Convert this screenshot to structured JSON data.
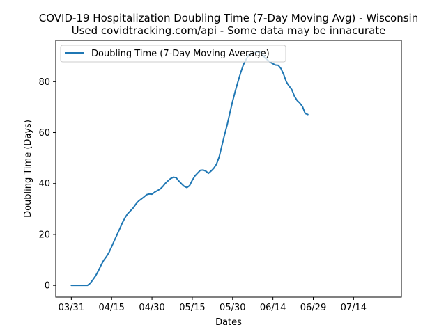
{
  "chart_data": {
    "type": "line",
    "title_lines": [
      "COVID-19 Hospitalization Doubling Time (7-Day Moving Avg) - Wisconsin",
      "Used covidtracking.com/api - Some data may be innacurate"
    ],
    "xlabel": "Dates",
    "ylabel": "Doubling Time (Days)",
    "x_ticks": [
      {
        "day": 0,
        "label": "03/31"
      },
      {
        "day": 15,
        "label": "04/15"
      },
      {
        "day": 30,
        "label": "04/30"
      },
      {
        "day": 45,
        "label": "05/15"
      },
      {
        "day": 60,
        "label": "05/30"
      },
      {
        "day": 75,
        "label": "06/14"
      },
      {
        "day": 90,
        "label": "06/29"
      },
      {
        "day": 105,
        "label": "07/14"
      }
    ],
    "y_ticks": [
      0,
      20,
      40,
      60,
      80
    ],
    "xlim": [
      -5.8,
      122.8
    ],
    "ylim": [
      -4.6,
      96.2
    ],
    "grid": false,
    "legend": "upper-left",
    "series": [
      {
        "name": "Doubling Time (7-Day Moving Average)",
        "color": "#1f77b4",
        "x_start_date": "03/31",
        "values": [
          0,
          0,
          0,
          0,
          0,
          0,
          0,
          0.8,
          2.2,
          3.7,
          5.6,
          7.8,
          9.8,
          11.2,
          12.9,
          15.2,
          17.6,
          19.9,
          22.2,
          24.6,
          26.6,
          28.2,
          29.3,
          30.4,
          31.9,
          33.1,
          33.9,
          34.7,
          35.6,
          35.9,
          35.8,
          36.6,
          37.2,
          37.8,
          38.8,
          40.1,
          41.1,
          42.0,
          42.5,
          42.3,
          41.0,
          39.9,
          38.9,
          38.4,
          39.2,
          41.3,
          43.0,
          44.1,
          45.2,
          45.3,
          44.9,
          44.0,
          44.9,
          46.0,
          47.6,
          50.4,
          54.8,
          59.1,
          63.1,
          67.8,
          72.3,
          76.3,
          80.0,
          83.5,
          86.6,
          88.6,
          90.5,
          90.9,
          91.3,
          91.6,
          91.7,
          91.0,
          89.3,
          88.5,
          87.6,
          87.0,
          86.5,
          86.4,
          85.1,
          82.8,
          79.9,
          78.3,
          76.9,
          74.3,
          72.6,
          71.6,
          70.2,
          67.5,
          67.1
        ]
      }
    ]
  }
}
